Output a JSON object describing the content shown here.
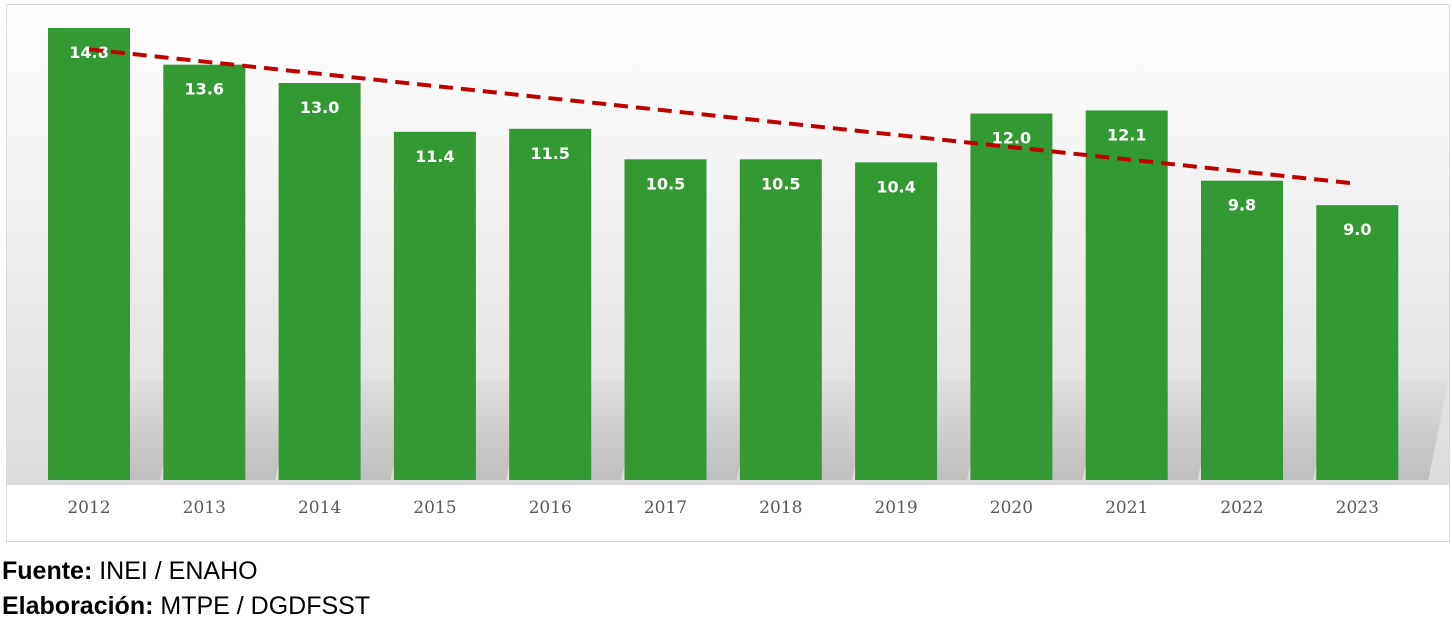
{
  "chart_data": {
    "type": "bar",
    "title": "",
    "xlabel": "",
    "ylabel": "",
    "categories": [
      "2012",
      "2013",
      "2014",
      "2015",
      "2016",
      "2017",
      "2018",
      "2019",
      "2020",
      "2021",
      "2022",
      "2023"
    ],
    "values": [
      14.8,
      13.6,
      13.0,
      11.4,
      11.5,
      10.5,
      10.5,
      10.4,
      12.0,
      12.1,
      9.8,
      9.0
    ],
    "data_labels": [
      "14.8",
      "13.6",
      "13.0",
      "11.4",
      "11.5",
      "10.5",
      "10.5",
      "10.4",
      "12.0",
      "12.1",
      "9.8",
      "9.0"
    ],
    "ylim": [
      0,
      15.5
    ],
    "grid": false,
    "legend": "none",
    "trendline": {
      "type": "linear",
      "style": "dashed",
      "color": "#c00000",
      "start": 14.1,
      "end": 9.7
    },
    "colors": {
      "bar": "#339933",
      "background_top": "#ffffff",
      "background_bottom": "#dcdcdc"
    }
  },
  "footer": {
    "source_label": "Fuente:",
    "source_value": " INEI / ENAHO",
    "credit_label": "Elaboración:",
    "credit_value": " MTPE / DGDFSST"
  }
}
